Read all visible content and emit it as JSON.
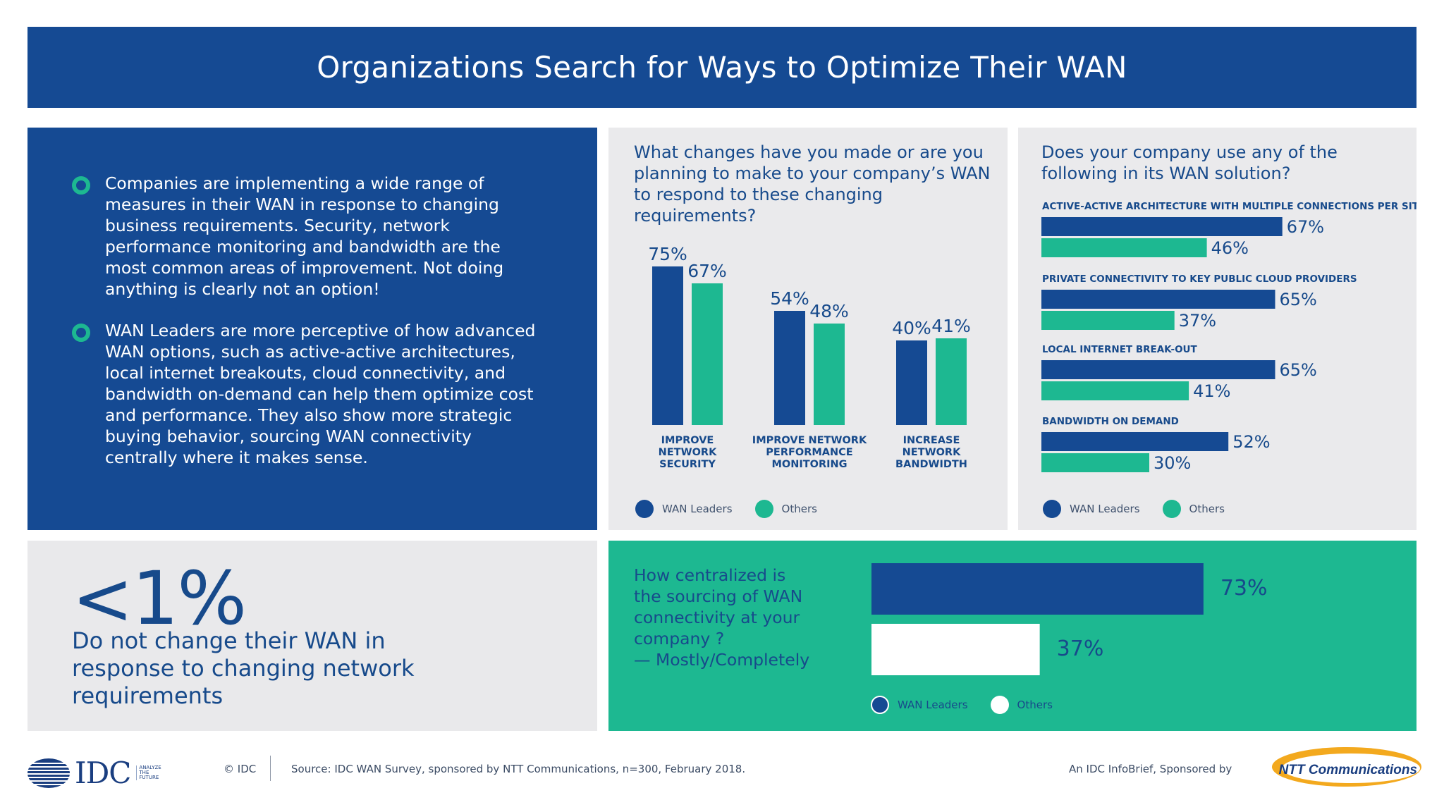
{
  "title": "Organizations Search for Ways to Optimize Their WAN",
  "colors": {
    "wan_leaders": "#154a93",
    "others": "#1db891",
    "others_central": "#ffffff"
  },
  "bullets": [
    "Companies are implementing a wide range of measures in their WAN in response to changing business requirements. Security, network performance monitoring and bandwidth are the most common areas of improvement. Not doing anything is clearly not an option!",
    "WAN Leaders are more perceptive of how advanced WAN options, such as active-active architectures, local internet breakouts, cloud connectivity, and bandwidth on-demand can help them optimize cost and performance. They also show more strategic buying behavior, sourcing WAN connectivity centrally where it makes sense."
  ],
  "stat": {
    "value": "<1%",
    "text": "Do not change their WAN in response to changing network requirements"
  },
  "legend": {
    "wan_leaders": "WAN Leaders",
    "others": "Others"
  },
  "footer": {
    "copyright": "© IDC",
    "source": "Source: IDC WAN Survey, sponsored by NTT Communications, n=300, February 2018.",
    "sponsored": "An IDC InfoBrief, Sponsored by",
    "idc_logo_text": "IDC",
    "idc_tagline": [
      "ANALYZE",
      "THE",
      "FUTURE"
    ],
    "ntt_logo_text": "NTT Communications"
  },
  "chart_data": [
    {
      "type": "bar",
      "title": "What changes have you made or are you planning to make to your company’s WAN to respond to these changing requirements?",
      "categories": [
        [
          "IMPROVE",
          "NETWORK",
          "SECURITY"
        ],
        [
          "IMPROVE NETWORK",
          "PERFORMANCE",
          "MONITORING"
        ],
        [
          "INCREASE",
          "NETWORK",
          "BANDWIDTH"
        ]
      ],
      "series": [
        {
          "name": "WAN Leaders",
          "values": [
            75,
            54,
            40
          ]
        },
        {
          "name": "Others",
          "values": [
            67,
            48,
            41
          ]
        }
      ],
      "value_suffix": "%",
      "legend": "bottom-left"
    },
    {
      "type": "bar",
      "orientation": "horizontal",
      "title": "Does your company use any of the following in its WAN solution?",
      "categories": [
        "ACTIVE-ACTIVE ARCHITECTURE WITH MULTIPLE CONNECTIONS PER SITE",
        "PRIVATE CONNECTIVITY TO KEY PUBLIC CLOUD PROVIDERS",
        "LOCAL INTERNET BREAK-OUT",
        "BANDWIDTH ON DEMAND"
      ],
      "series": [
        {
          "name": "WAN Leaders",
          "values": [
            67,
            65,
            65,
            52
          ]
        },
        {
          "name": "Others",
          "values": [
            46,
            37,
            41,
            30
          ]
        }
      ],
      "value_suffix": "%",
      "legend": "bottom-left"
    },
    {
      "type": "bar",
      "orientation": "horizontal",
      "title": "How centralized is the sourcing of WAN connectivity at your company ? — Mostly/Completely",
      "title_lines": [
        "How centralized is",
        "the sourcing of WAN",
        "connectivity at your",
        "company ?",
        "— Mostly/Completely"
      ],
      "series": [
        {
          "name": "WAN Leaders",
          "values": [
            73
          ]
        },
        {
          "name": "Others",
          "values": [
            37
          ]
        }
      ],
      "value_suffix": "%",
      "legend": "bottom"
    }
  ]
}
